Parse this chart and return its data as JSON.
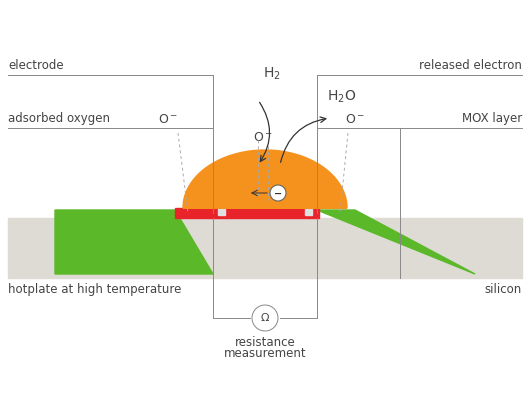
{
  "white_bg": "#ffffff",
  "silicon_color": "#dedad4",
  "green_color": "#5bb829",
  "red_color": "#e8242a",
  "orange_color": "#f5921e",
  "label_color": "#444444",
  "line_color": "#888888",
  "figsize": [
    5.3,
    4.0
  ],
  "dpi": 100,
  "labels": {
    "electrode": "electrode",
    "released_electron": "released electron",
    "adsorbed_oxygen": "adsorbed oxygen",
    "mox_layer": "MOX layer",
    "hotplate": "hotplate at high temperature",
    "silicon": "silicon",
    "resistance_line1": "resistance",
    "resistance_line2": "measurement",
    "H2": "H$_2$",
    "H2O": "H$_2$O",
    "O_minus": "O$^-$",
    "e_minus": "-"
  }
}
